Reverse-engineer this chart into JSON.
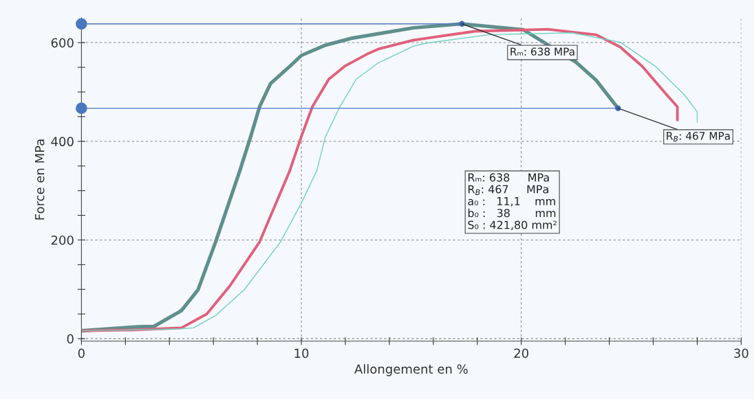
{
  "chart_data": {
    "type": "line",
    "xlabel": "Allongement en %",
    "ylabel": "Force en MPa",
    "series": [
      {
        "color": "#5f8f8c",
        "x": [
          0,
          2.57,
          3.3,
          4.55,
          5.3,
          6.1,
          7.2,
          7.7,
          8.1,
          8.6,
          9.5,
          10,
          11.1,
          12.3,
          15.1,
          17.3,
          20.1,
          22.5,
          23.4,
          24.4
        ],
        "values": [
          16,
          24,
          25,
          57,
          99,
          196,
          340,
          410,
          470,
          517,
          553,
          574,
          595,
          609,
          630,
          638,
          626,
          560,
          524,
          467
        ]
      },
      {
        "color": "#e0607a",
        "x": [
          0,
          2.5,
          4.55,
          5.7,
          6.75,
          8.1,
          9.47,
          10,
          10.5,
          11.25,
          12,
          13,
          13.5,
          15.1,
          15.7,
          17.9,
          21.2,
          23.4,
          24.5,
          25.5,
          26.6,
          27.1,
          27.1
        ],
        "values": [
          16,
          18,
          22,
          50,
          107,
          196,
          340,
          410,
          470,
          526,
          553,
          577,
          587,
          605,
          609,
          623,
          627,
          616,
          591,
          552,
          495,
          470,
          443
        ]
      },
      {
        "type": "scatter",
        "marker": "circle",
        "color": "#4a78c0",
        "x": [
          0,
          0
        ],
        "values": [
          638,
          467
        ]
      },
      {
        "color": "#6fd0c0",
        "x": [
          0,
          2.5,
          4.5,
          5.1,
          6.1,
          7.4,
          9.05,
          10,
          10.7,
          11.1,
          11.75,
          12.5,
          13.5,
          15.1,
          15.7,
          18.5,
          22.3,
          24.5,
          26.1,
          27.4,
          28,
          28
        ],
        "values": [
          16,
          18,
          20,
          22,
          47,
          99,
          196,
          275,
          340,
          410,
          470,
          526,
          559,
          593,
          599,
          616,
          620,
          601,
          552,
          495,
          460,
          439
        ]
      }
    ],
    "xlim": [
      0,
      30
    ],
    "xticks": [
      0,
      {
        "value": 2,
        "label": null
      },
      {
        "value": 4,
        "label": null
      },
      {
        "value": 6,
        "label": null
      },
      {
        "value": 8,
        "label": null
      },
      10,
      {
        "value": 12,
        "label": null
      },
      {
        "value": 14,
        "label": null
      },
      {
        "value": 16,
        "label": null
      },
      {
        "value": 18,
        "label": null
      },
      20,
      {
        "value": 22,
        "label": null
      },
      {
        "value": 24,
        "label": null
      },
      {
        "value": 26,
        "label": null
      },
      {
        "value": 28,
        "label": null
      },
      30
    ],
    "ylim": [
      -5,
      650
    ],
    "yticks": [
      0,
      {
        "value": 50,
        "label": null
      },
      {
        "value": 100,
        "label": null
      },
      {
        "value": 150,
        "label": null
      },
      200,
      {
        "value": 250,
        "label": null
      },
      {
        "value": 300,
        "label": null
      },
      {
        "value": 350,
        "label": null
      },
      400,
      {
        "value": 450,
        "label": null
      },
      {
        "value": 500,
        "label": null
      },
      {
        "value": 550,
        "label": null
      },
      600
    ],
    "grid": true,
    "marker": "none",
    "line_style": "solid",
    "ref_lines": [
      {
        "axis": "y",
        "value": 638,
        "color": "#4a78c0"
      },
      {
        "axis": "y",
        "value": 467,
        "color": "#4a78c0"
      }
    ],
    "annotations": [
      {
        "text": "Rₘ: 638 MPa",
        "x": 17.3,
        "y": 638
      },
      {
        "text": "R$_{B}$: 467 MPa",
        "x": 24.4,
        "y": 467
      },
      "Rₘ: 638     MPa\nR$_{B}$: 467     MPa\na₀ :   11,1    mm\nb₀ :   38       mm\nS₀ : 421,80 mm²"
    ]
  }
}
